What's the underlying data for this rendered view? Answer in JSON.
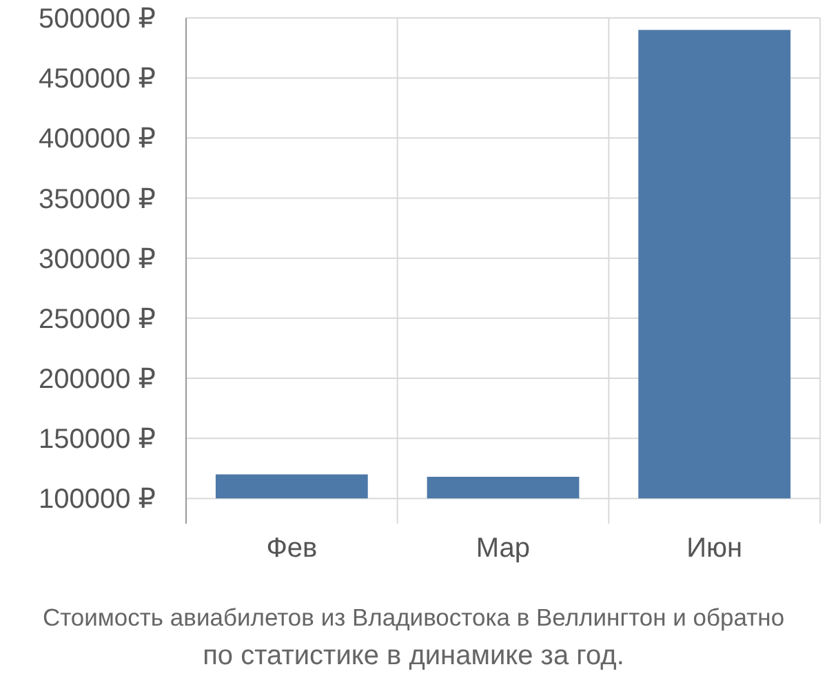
{
  "chart_data": {
    "type": "bar",
    "categories": [
      "Фев",
      "Мар",
      "Июн"
    ],
    "values": [
      20000,
      18000,
      390000
    ],
    "base": [
      100000,
      100000,
      100000
    ],
    "color": "#4d79a8",
    "ylim": [
      79000,
      500000
    ],
    "yticks": [
      {
        "value": 100000,
        "label": "100000 ₽"
      },
      {
        "value": 150000,
        "label": "150000 ₽"
      },
      {
        "value": 200000,
        "label": "200000 ₽"
      },
      {
        "value": 250000,
        "label": "250000 ₽"
      },
      {
        "value": 300000,
        "label": "300000 ₽"
      },
      {
        "value": 350000,
        "label": "350000 ₽"
      },
      {
        "value": 400000,
        "label": "400000 ₽"
      },
      {
        "value": 450000,
        "label": "450000 ₽"
      },
      {
        "value": 500000,
        "label": "500000 ₽"
      }
    ],
    "grid": true,
    "annotations": [
      "Стоимость авиабилетов из Владивостока в Веллингтон и обратно",
      "по статистике в динамике за год."
    ]
  }
}
